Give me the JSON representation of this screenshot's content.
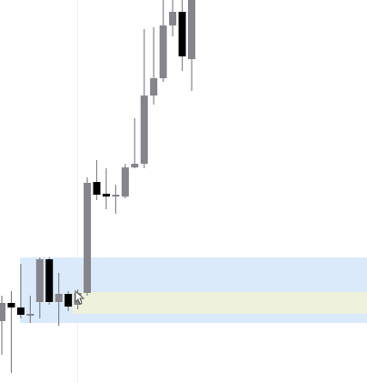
{
  "chart_data": {
    "type": "candlestick",
    "open": [
      68,
      88,
      83,
      74,
      89,
      136,
      89,
      98,
      86,
      99,
      221,
      208,
      205,
      205,
      237,
      241,
      316,
      335,
      393,
      408,
      356
    ],
    "high": [
      96,
      101,
      131,
      96,
      138,
      138,
      121,
      101,
      103,
      226,
      245,
      236,
      218,
      241,
      291,
      389,
      391,
      421,
      421,
      421,
      421
    ],
    "low": [
      31,
      11,
      71,
      66,
      71,
      86,
      63,
      79,
      81,
      96,
      201,
      191,
      186,
      203,
      236,
      236,
      306,
      331,
      381,
      343,
      321
    ],
    "close": [
      88,
      83,
      75,
      76,
      136,
      89,
      98,
      84,
      99,
      220,
      207,
      205,
      207,
      237,
      241,
      316,
      335,
      393,
      408,
      359,
      421
    ],
    "up_color": "#85858b",
    "down_color": "#000000",
    "ylim": [
      0,
      421
    ]
  }
}
